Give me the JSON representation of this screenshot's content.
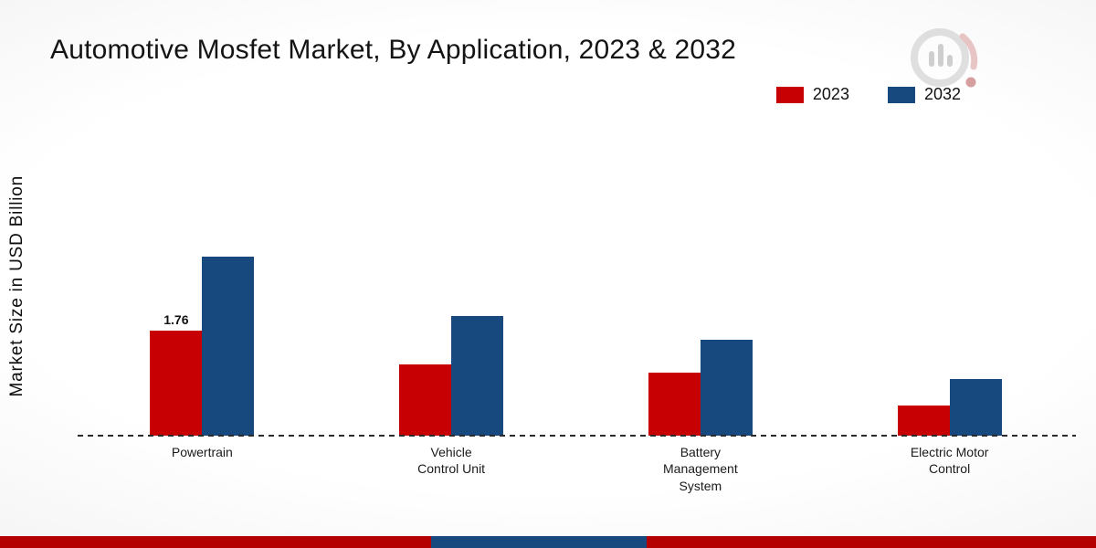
{
  "title": "Automotive Mosfet Market, By Application, 2023 & 2032",
  "y_axis_label": "Market Size in USD Billion",
  "colors": {
    "series_2023": "#c70003",
    "series_2032": "#17497e",
    "footer_bar": "#b50000",
    "footer_accent": "#17497e",
    "axis_line": "#2b2b2b"
  },
  "legend": {
    "items": [
      {
        "label": "2023",
        "color": "#c70003"
      },
      {
        "label": "2032",
        "color": "#17497e"
      }
    ]
  },
  "chart_data": {
    "type": "bar",
    "title": "Automotive Mosfet Market, By Application, 2023 & 2032",
    "xlabel": "",
    "ylabel": "Market Size in USD Billion",
    "categories": [
      "Powertrain",
      "Vehicle Control Unit",
      "Battery Management System",
      "Electric Motor Control"
    ],
    "series": [
      {
        "name": "2023",
        "color": "#c70003",
        "values": [
          1.76,
          1.2,
          1.05,
          0.5
        ]
      },
      {
        "name": "2032",
        "color": "#17497e",
        "values": [
          3.0,
          2.0,
          1.6,
          0.95
        ]
      }
    ],
    "annotations": [
      {
        "series": "2023",
        "category": "Powertrain",
        "text": "1.76"
      }
    ],
    "ylim": [
      0,
      5
    ],
    "grid": false,
    "legend_position": "top-right",
    "baseline_style": "dashed"
  }
}
